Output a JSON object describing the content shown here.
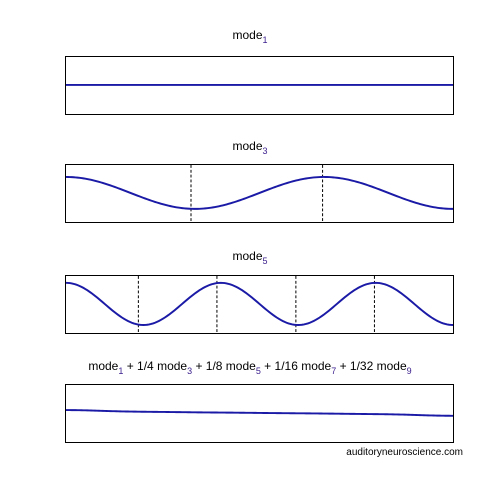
{
  "chart_data": [
    {
      "type": "line",
      "title_parts": [
        {
          "text": "mode",
          "sub": "1"
        }
      ],
      "series": [
        {
          "values_description": "",
          "harmonic": 1,
          "amplitude": 0.0
        }
      ],
      "dashed_lines": [],
      "color": "#1a1aa6"
    },
    {
      "type": "line",
      "title_parts": [
        {
          "text": "mode",
          "sub": "3"
        }
      ],
      "series": [
        {
          "harmonic": 3,
          "amplitude": 0.28
        }
      ],
      "dashed_lines": [
        0.323,
        0.663
      ],
      "color": "#1a1aa6"
    },
    {
      "type": "line",
      "title_parts": [
        {
          "text": "mode",
          "sub": "5"
        }
      ],
      "series": [
        {
          "harmonic": 5,
          "amplitude": 0.37
        }
      ],
      "dashed_lines": [
        0.187,
        0.39,
        0.594,
        0.797
      ],
      "color": "#1a1aa6"
    },
    {
      "type": "line",
      "title_parts": [
        {
          "text": "mode",
          "sub": "1"
        },
        {
          "text": " + 1/4 mode",
          "sub": "3"
        },
        {
          "text": " + 1/8 mode",
          "sub": "5"
        },
        {
          "text": " + 1/16 mode",
          "sub": "7"
        },
        {
          "text": " + 1/32 mode",
          "sub": "9"
        }
      ],
      "series": [
        {
          "components": [
            [
              1,
              1
            ],
            [
              3,
              0.25
            ],
            [
              5,
              0.125
            ],
            [
              7,
              0.0625
            ],
            [
              9,
              0.03125
            ]
          ],
          "amplitude": 0.05
        }
      ],
      "dashed_lines": [],
      "color": "#1a1aa6"
    }
  ],
  "credit": "auditoryneuroscience.com"
}
